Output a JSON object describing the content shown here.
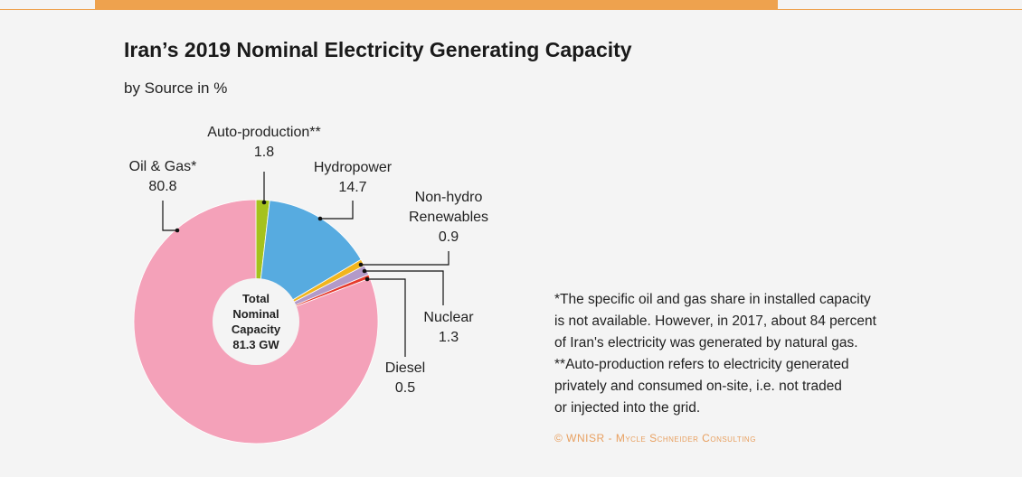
{
  "chart_data": {
    "type": "pie",
    "title": "Iran’s 2019 Nominal Electricity Generating Capacity",
    "subtitle": "by Source in %",
    "categories": [
      "Auto-production**",
      "Hydropower",
      "Non-hydro Renewables",
      "Nuclear",
      "Diesel",
      "Oil & Gas*"
    ],
    "values": [
      1.8,
      14.7,
      0.9,
      1.3,
      0.5,
      80.8
    ],
    "colors": [
      "#a5c21e",
      "#57abe0",
      "#f1b51d",
      "#b39ac8",
      "#e63a2c",
      "#f4a1b9"
    ],
    "center_label": [
      "Total",
      "Nominal",
      "Capacity",
      "81.3 GW"
    ],
    "notes": [
      "*The specific oil and gas share in installed capacity",
      "is not available. However, in 2017, about 84 percent",
      "of Iran's electricity was generated by natural gas.",
      "**Auto-production refers to electricity generated",
      "privately and consumed on-site, i.e. not traded",
      "or injected into the grid."
    ],
    "credit": "© WNISR - Mycle Schneider Consulting"
  }
}
